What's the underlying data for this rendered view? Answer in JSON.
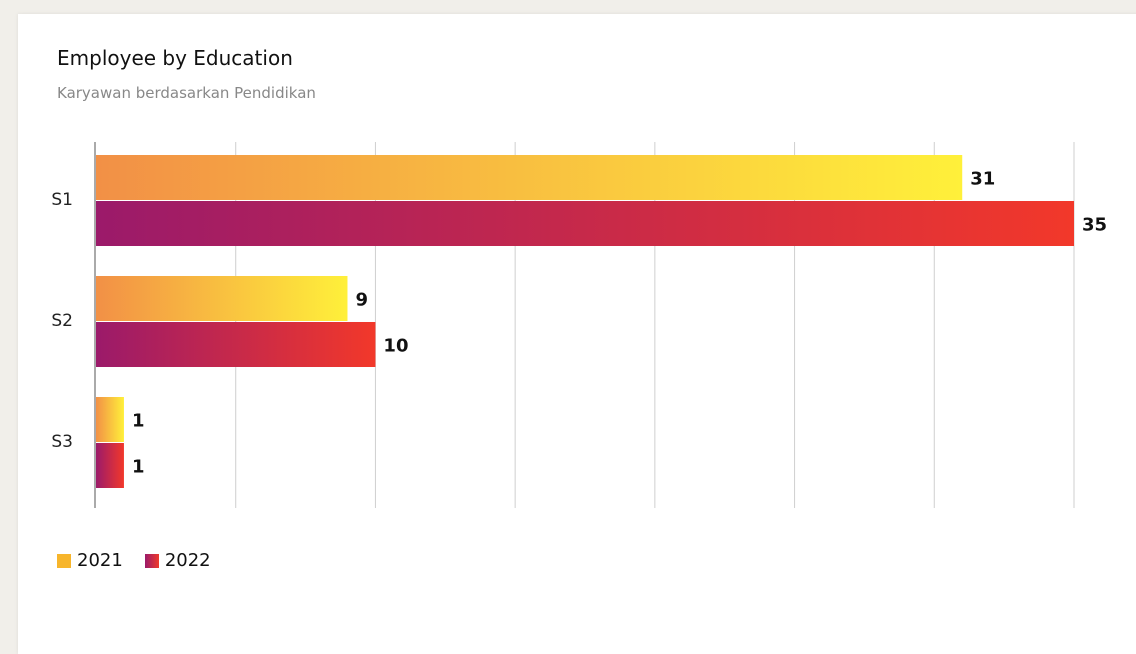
{
  "title": "Employee by Education",
  "subtitle": "Karyawan berdasarkan Pendidikan",
  "chart_data": {
    "type": "bar",
    "orientation": "horizontal",
    "categories": [
      "S1",
      "S2",
      "S3"
    ],
    "series": [
      {
        "name": "2021",
        "values": [
          31,
          9,
          1
        ],
        "colors": [
          "#f29046",
          "#fff03a"
        ]
      },
      {
        "name": "2022",
        "values": [
          35,
          10,
          1
        ],
        "colors": [
          "#9b1a6a",
          "#f2382a"
        ]
      }
    ],
    "xlim": [
      0,
      35
    ],
    "grid": true,
    "legend_position": "bottom-left"
  }
}
